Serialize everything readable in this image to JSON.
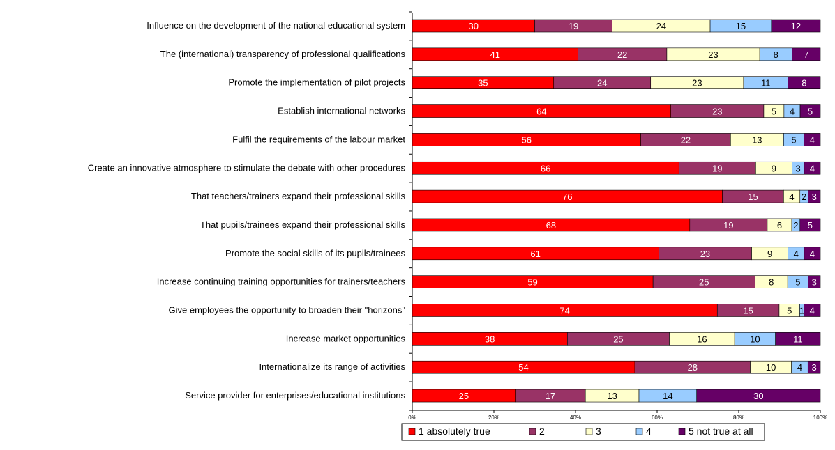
{
  "chart_data": {
    "type": "bar",
    "orientation": "horizontal",
    "stacked": true,
    "categories": [
      "Influence on the development of the national educational system",
      "The (international) transparency of professional qualifications",
      "Promote the implementation of pilot projects",
      "Establish international networks",
      "Fulfil the requirements of the labour market",
      "Create an innovative atmosphere to stimulate the debate with other procedures",
      "That teachers/trainers expand their professional skills",
      "That pupils/trainees expand their professional skills",
      "Promote the social skills of its pupils/trainees",
      "Increase continuing training opportunities for trainers/teachers",
      "Give employees the opportunity to broaden their \"horizons\"",
      "Increase market opportunities",
      "Internationalize its range of activities",
      "Service provider for enterprises/educational institutions"
    ],
    "series": [
      {
        "name": "1  absolutely true",
        "color": "#ff0000",
        "text_color": "#ffffff",
        "values": [
          30,
          41,
          35,
          64,
          56,
          66,
          76,
          68,
          61,
          59,
          74,
          38,
          54,
          25
        ]
      },
      {
        "name": "2",
        "color": "#993366",
        "text_color": "#ffffff",
        "values": [
          19,
          22,
          24,
          23,
          22,
          19,
          15,
          19,
          23,
          25,
          15,
          25,
          28,
          17
        ]
      },
      {
        "name": "3",
        "color": "#ffffcc",
        "text_color": "#000000",
        "values": [
          24,
          23,
          23,
          5,
          13,
          9,
          4,
          6,
          9,
          8,
          5,
          16,
          10,
          13
        ]
      },
      {
        "name": "4",
        "color": "#99ccff",
        "text_color": "#000000",
        "values": [
          15,
          8,
          11,
          4,
          5,
          3,
          2,
          2,
          4,
          5,
          1,
          10,
          4,
          14
        ]
      },
      {
        "name": "5 not true at all",
        "color": "#660066",
        "text_color": "#ffffff",
        "values": [
          12,
          7,
          8,
          5,
          4,
          4,
          3,
          5,
          4,
          3,
          4,
          11,
          3,
          30
        ]
      }
    ],
    "x_ticks": [
      "0%",
      "20%",
      "40%",
      "60%",
      "80%",
      "100%"
    ],
    "xlim": [
      0,
      100
    ],
    "percent_normalized": true,
    "grid": false,
    "legend_position": "bottom"
  }
}
